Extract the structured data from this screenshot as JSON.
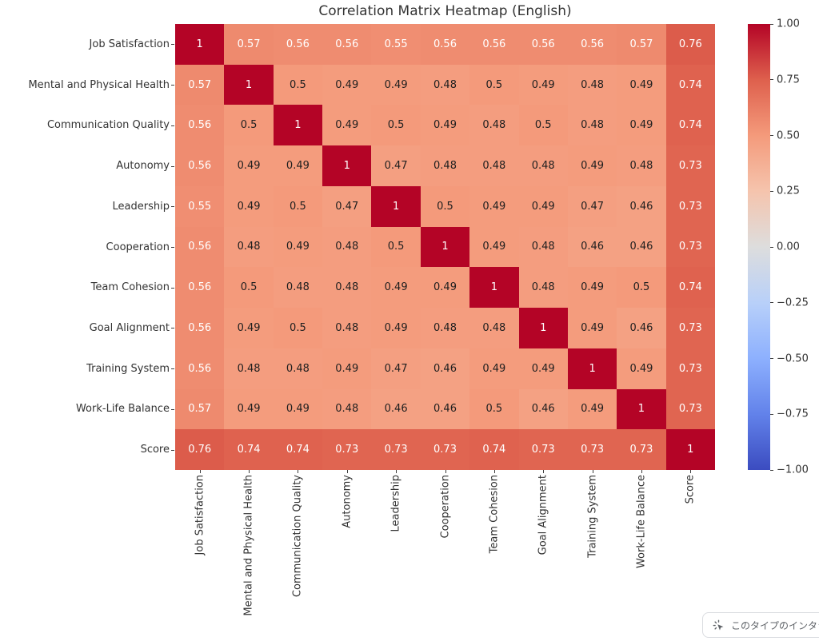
{
  "title": "Correlation Matrix Heatmap (English)",
  "chart_data": {
    "type": "heatmap",
    "title": "Correlation Matrix Heatmap (English)",
    "labels": [
      "Job Satisfaction",
      "Mental and Physical Health",
      "Communication Quality",
      "Autonomy",
      "Leadership",
      "Cooperation",
      "Team Cohesion",
      "Goal Alignment",
      "Training System",
      "Work-Life Balance",
      "Score"
    ],
    "matrix": [
      [
        1,
        0.57,
        0.56,
        0.56,
        0.55,
        0.56,
        0.56,
        0.56,
        0.56,
        0.57,
        0.76
      ],
      [
        0.57,
        1,
        0.5,
        0.49,
        0.49,
        0.48,
        0.5,
        0.49,
        0.48,
        0.49,
        0.74
      ],
      [
        0.56,
        0.5,
        1,
        0.49,
        0.5,
        0.49,
        0.48,
        0.5,
        0.48,
        0.49,
        0.74
      ],
      [
        0.56,
        0.49,
        0.49,
        1,
        0.47,
        0.48,
        0.48,
        0.48,
        0.49,
        0.48,
        0.73
      ],
      [
        0.55,
        0.49,
        0.5,
        0.47,
        1,
        0.5,
        0.49,
        0.49,
        0.47,
        0.46,
        0.73
      ],
      [
        0.56,
        0.48,
        0.49,
        0.48,
        0.5,
        1,
        0.49,
        0.48,
        0.46,
        0.46,
        0.73
      ],
      [
        0.56,
        0.5,
        0.48,
        0.48,
        0.49,
        0.49,
        1,
        0.48,
        0.49,
        0.5,
        0.74
      ],
      [
        0.56,
        0.49,
        0.5,
        0.48,
        0.49,
        0.48,
        0.48,
        1,
        0.49,
        0.46,
        0.73
      ],
      [
        0.56,
        0.48,
        0.48,
        0.49,
        0.47,
        0.46,
        0.49,
        0.49,
        1,
        0.49,
        0.73
      ],
      [
        0.57,
        0.49,
        0.49,
        0.48,
        0.46,
        0.46,
        0.5,
        0.46,
        0.49,
        1,
        0.73
      ],
      [
        0.76,
        0.74,
        0.74,
        0.73,
        0.73,
        0.73,
        0.74,
        0.73,
        0.73,
        0.73,
        1
      ]
    ],
    "vmin": -1,
    "vmax": 1,
    "annotations": true,
    "grid": false,
    "colormap": "coolwarm",
    "colormap_stops": [
      "#3b4cc0",
      "#6282ea",
      "#8db0fe",
      "#b8d0f9",
      "#dddddd",
      "#f5c4ad",
      "#f49a7b",
      "#de604d",
      "#b40426"
    ],
    "colorbar_ticks": [
      {
        "value": 1.0,
        "label": "1.00"
      },
      {
        "value": 0.75,
        "label": "0.75"
      },
      {
        "value": 0.5,
        "label": "0.50"
      },
      {
        "value": 0.25,
        "label": "0.25"
      },
      {
        "value": 0.0,
        "label": "0.00"
      },
      {
        "value": -0.25,
        "label": "−0.25"
      },
      {
        "value": -0.5,
        "label": "−0.50"
      },
      {
        "value": -0.75,
        "label": "−0.75"
      },
      {
        "value": -1.0,
        "label": "−1.00"
      }
    ],
    "legend_position": "right-colorbar"
  },
  "colors": {
    "background": "#ffffff",
    "title_text": "#343434",
    "axis_text": "#333333",
    "tick_mark": "#3c3c3c",
    "annotation_dark": "#1f1f1f",
    "annotation_light": "#ffffff",
    "overlay_border": "#dadce0",
    "overlay_text": "#5f6368",
    "overlay_bg": "#ffffff"
  },
  "overlay": {
    "icon": "interactive-cursor-icon",
    "text": "このタイプのインタラクティブ"
  }
}
